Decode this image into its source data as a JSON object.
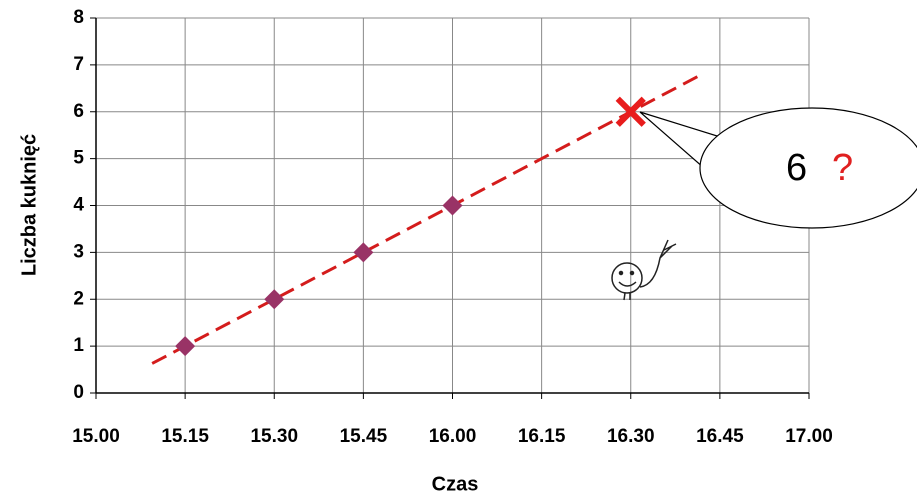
{
  "chart_data": {
    "type": "scatter",
    "x_label": "Czas",
    "y_label": "Liczba kuknięć",
    "categories": [
      "15.00",
      "15.15",
      "15.30",
      "15.45",
      "16.00",
      "16.15",
      "16.30",
      "16.45",
      "17.00"
    ],
    "series": [
      {
        "color": "#993366",
        "marker": "diamond",
        "values": [
          null,
          1,
          2,
          3,
          4,
          null,
          null,
          null,
          null
        ]
      },
      {
        "color": "#e81c1c",
        "marker": "cross",
        "values": [
          null,
          null,
          null,
          null,
          null,
          null,
          6,
          null,
          null
        ]
      }
    ],
    "trendline": {
      "color": "#d41c1c",
      "dashed": true
    },
    "ylim": [
      0,
      8
    ],
    "yticks": [
      0,
      1,
      2,
      3,
      4,
      5,
      6,
      7,
      8
    ],
    "grid": true,
    "annotation": {
      "text": "6",
      "mark": "?",
      "mark_color": "#e02020"
    }
  }
}
